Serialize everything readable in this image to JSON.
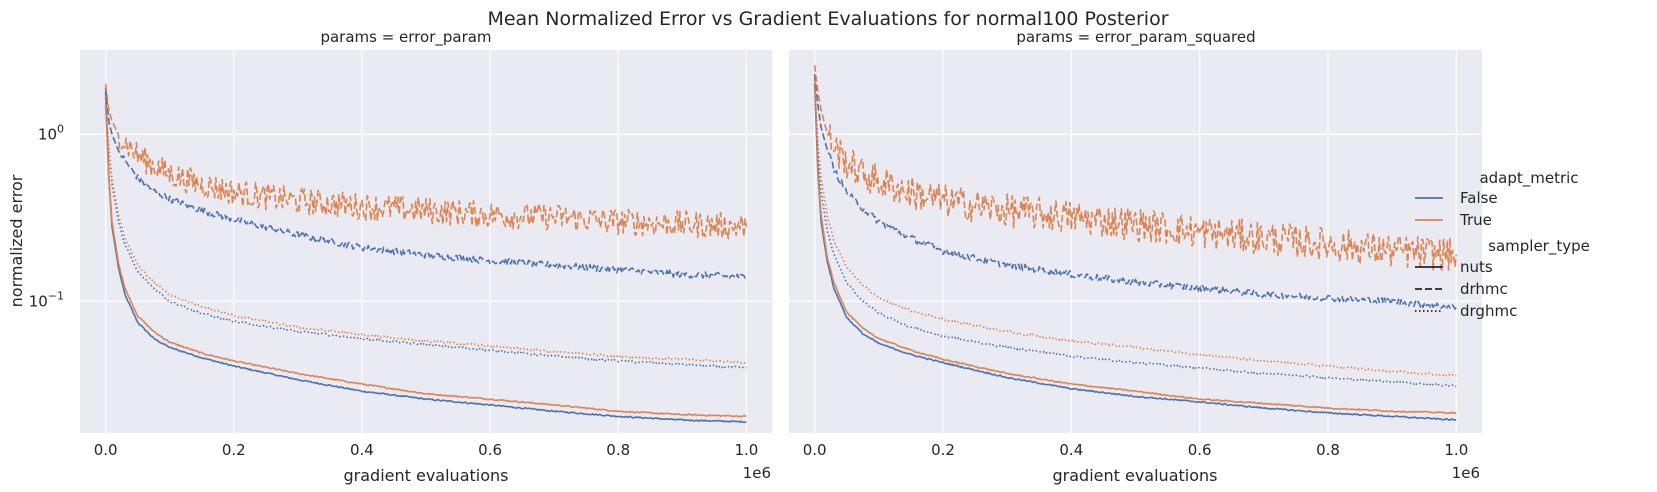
{
  "figure": {
    "suptitle": "Mean Normalized Error vs Gradient Evaluations for normal100 Posterior"
  },
  "colors": {
    "background_panel": "#EAEAF2",
    "grid": "#FFFFFF",
    "adapt_false": "#4C72B0",
    "adapt_true": "#DD8452"
  },
  "legend": {
    "placement": "right",
    "hue_title": "adapt_metric",
    "hue_items": [
      {
        "label": "False",
        "color": "#4C72B0"
      },
      {
        "label": "True",
        "color": "#DD8452"
      }
    ],
    "style_title": "sampler_type",
    "style_items": [
      {
        "label": "nuts",
        "dash": "solid"
      },
      {
        "label": "drhmc",
        "dash": "dashed"
      },
      {
        "label": "drghmc",
        "dash": "dotted"
      }
    ]
  },
  "chart_data": [
    {
      "type": "line",
      "title": "params = error_param",
      "xlabel": "gradient evaluations",
      "ylabel": "normalized error",
      "x_offset_label": "1e6",
      "x_ticks": [
        "0.0",
        "0.2",
        "0.4",
        "0.6",
        "0.8",
        "1.0"
      ],
      "y_scale": "log",
      "y_ticks": [
        "10^0",
        "10^-1"
      ],
      "xlim": [
        -40000,
        1040000
      ],
      "ylim": [
        0.0163,
        3.2
      ],
      "grid": true,
      "x": [
        0,
        5000,
        10000,
        20000,
        30000,
        50000,
        75000,
        100000,
        150000,
        200000,
        300000,
        400000,
        500000,
        600000,
        700000,
        800000,
        900000,
        1000000
      ],
      "series": [
        {
          "name": "False, nuts",
          "adapt_metric": "False",
          "sampler_type": "nuts",
          "noise": 0.004,
          "values": [
            1.8,
            0.55,
            0.28,
            0.16,
            0.11,
            0.075,
            0.06,
            0.053,
            0.046,
            0.041,
            0.034,
            0.029,
            0.026,
            0.024,
            0.022,
            0.0205,
            0.0195,
            0.019
          ]
        },
        {
          "name": "True, nuts",
          "adapt_metric": "True",
          "sampler_type": "nuts",
          "noise": 0.004,
          "values": [
            1.5,
            0.55,
            0.3,
            0.17,
            0.12,
            0.082,
            0.066,
            0.057,
            0.049,
            0.044,
            0.037,
            0.032,
            0.028,
            0.026,
            0.024,
            0.022,
            0.021,
            0.0205
          ]
        },
        {
          "name": "False, drhmc",
          "adapt_metric": "False",
          "sampler_type": "drhmc",
          "noise": 0.02,
          "values": [
            1.9,
            1.2,
            1.0,
            0.8,
            0.7,
            0.55,
            0.46,
            0.41,
            0.35,
            0.31,
            0.25,
            0.21,
            0.19,
            0.175,
            0.165,
            0.155,
            0.145,
            0.14
          ]
        },
        {
          "name": "True, drhmc",
          "adapt_metric": "True",
          "sampler_type": "drhmc",
          "noise": 0.08,
          "values": [
            2.0,
            1.4,
            1.2,
            1.0,
            0.9,
            0.75,
            0.65,
            0.58,
            0.5,
            0.45,
            0.4,
            0.37,
            0.35,
            0.33,
            0.32,
            0.3,
            0.29,
            0.28
          ]
        },
        {
          "name": "False, drghmc",
          "adapt_metric": "False",
          "sampler_type": "drghmc",
          "noise": 0.006,
          "values": [
            1.7,
            0.8,
            0.5,
            0.3,
            0.22,
            0.15,
            0.12,
            0.1,
            0.085,
            0.076,
            0.066,
            0.06,
            0.055,
            0.051,
            0.047,
            0.044,
            0.042,
            0.04
          ]
        },
        {
          "name": "True, drghmc",
          "adapt_metric": "True",
          "sampler_type": "drghmc",
          "noise": 0.006,
          "values": [
            1.7,
            0.85,
            0.55,
            0.33,
            0.24,
            0.165,
            0.13,
            0.11,
            0.093,
            0.082,
            0.07,
            0.063,
            0.058,
            0.054,
            0.05,
            0.047,
            0.045,
            0.043
          ]
        }
      ]
    },
    {
      "type": "line",
      "title": "params = error_param_squared",
      "xlabel": "gradient evaluations",
      "ylabel": "",
      "x_offset_label": "1e6",
      "x_ticks": [
        "0.0",
        "0.2",
        "0.4",
        "0.6",
        "0.8",
        "1.0"
      ],
      "y_scale": "log",
      "y_ticks": [],
      "xlim": [
        -40000,
        1040000
      ],
      "ylim": [
        0.0163,
        3.2
      ],
      "grid": true,
      "x": [
        0,
        5000,
        10000,
        20000,
        30000,
        50000,
        75000,
        100000,
        150000,
        200000,
        300000,
        400000,
        500000,
        600000,
        700000,
        800000,
        900000,
        1000000
      ],
      "series": [
        {
          "name": "False, nuts",
          "adapt_metric": "False",
          "sampler_type": "nuts",
          "noise": 0.004,
          "values": [
            2.0,
            0.6,
            0.3,
            0.17,
            0.12,
            0.08,
            0.064,
            0.056,
            0.048,
            0.043,
            0.035,
            0.03,
            0.027,
            0.025,
            0.023,
            0.0215,
            0.0205,
            0.0195
          ]
        },
        {
          "name": "True, nuts",
          "adapt_metric": "True",
          "sampler_type": "nuts",
          "noise": 0.004,
          "values": [
            2.2,
            0.65,
            0.33,
            0.18,
            0.13,
            0.086,
            0.069,
            0.06,
            0.051,
            0.045,
            0.037,
            0.032,
            0.029,
            0.026,
            0.0245,
            0.023,
            0.022,
            0.0215
          ]
        },
        {
          "name": "False, drhmc",
          "adapt_metric": "False",
          "sampler_type": "drhmc",
          "noise": 0.02,
          "values": [
            2.3,
            1.5,
            1.1,
            0.8,
            0.62,
            0.45,
            0.36,
            0.3,
            0.24,
            0.2,
            0.165,
            0.145,
            0.13,
            0.12,
            0.11,
            0.105,
            0.1,
            0.092
          ]
        },
        {
          "name": "True, drhmc",
          "adapt_metric": "True",
          "sampler_type": "drhmc",
          "noise": 0.1,
          "values": [
            2.6,
            1.8,
            1.4,
            1.0,
            0.85,
            0.68,
            0.58,
            0.52,
            0.45,
            0.4,
            0.35,
            0.32,
            0.29,
            0.26,
            0.24,
            0.22,
            0.2,
            0.19
          ]
        },
        {
          "name": "False, drghmc",
          "adapt_metric": "False",
          "sampler_type": "drghmc",
          "noise": 0.006,
          "values": [
            2.0,
            0.75,
            0.45,
            0.26,
            0.19,
            0.13,
            0.1,
            0.085,
            0.07,
            0.062,
            0.053,
            0.047,
            0.043,
            0.04,
            0.037,
            0.035,
            0.033,
            0.031
          ]
        },
        {
          "name": "True, drghmc",
          "adapt_metric": "True",
          "sampler_type": "drghmc",
          "noise": 0.006,
          "values": [
            2.1,
            0.9,
            0.55,
            0.32,
            0.23,
            0.16,
            0.125,
            0.105,
            0.088,
            0.078,
            0.066,
            0.058,
            0.053,
            0.048,
            0.044,
            0.041,
            0.038,
            0.036
          ]
        }
      ]
    }
  ]
}
